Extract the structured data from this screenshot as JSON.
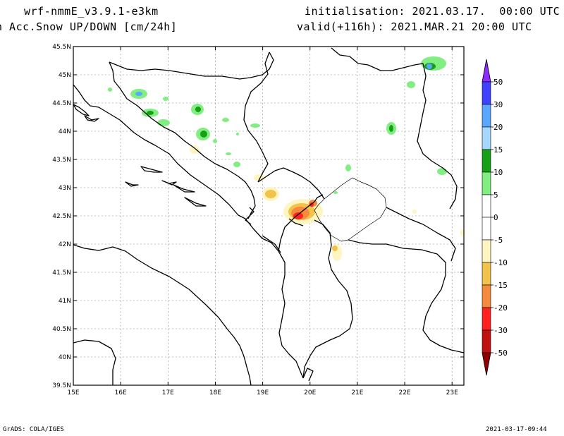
{
  "header": {
    "model": "wrf-nmmE_v3.9.1-e3km",
    "field": "n Acc.Snow UP/DOWN [cm/24h]",
    "init": "initialisation: 2021.03.17.  00:00 UTC",
    "valid": "valid(+116h): 2021.MAR.21 20:00 UTC"
  },
  "footer": {
    "left": "GrADS: COLA/IGES",
    "right": "2021-03-17-09:44"
  },
  "map": {
    "lat_ticks": [
      "45.5N",
      "45N",
      "44.5N",
      "44N",
      "43.5N",
      "43N",
      "42.5N",
      "42N",
      "41.5N",
      "41N",
      "40.5N",
      "40N",
      "39.5N"
    ],
    "lon_ticks": [
      "15E",
      "16E",
      "17E",
      "18E",
      "19E",
      "20E",
      "21E",
      "22E",
      "23E"
    ]
  },
  "colorbar": {
    "levels": [
      "50",
      "30",
      "20",
      "15",
      "10",
      "5",
      "0",
      "-5",
      "-10",
      "-15",
      "-20",
      "-30",
      "-50"
    ],
    "colors": [
      "#8b2bff",
      "#4040ff",
      "#5aa7ff",
      "#a6d8ff",
      "#16a016",
      "#80ee80",
      "#ffffff",
      "#ffffff",
      "#fff5c0",
      "#f2c24a",
      "#f58a3c",
      "#ff2020",
      "#c01010",
      "#900000"
    ]
  }
}
